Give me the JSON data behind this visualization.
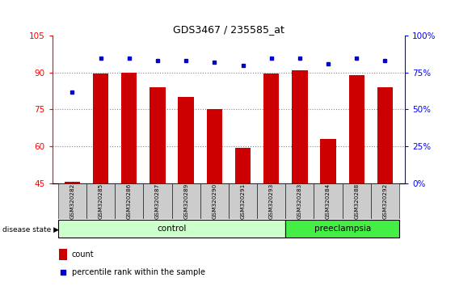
{
  "title": "GDS3467 / 235585_at",
  "samples": [
    "GSM320282",
    "GSM320285",
    "GSM320286",
    "GSM320287",
    "GSM320289",
    "GSM320290",
    "GSM320291",
    "GSM320293",
    "GSM320283",
    "GSM320284",
    "GSM320288",
    "GSM320292"
  ],
  "count_values": [
    45.5,
    89.5,
    90.0,
    84.0,
    80.0,
    75.0,
    59.5,
    89.5,
    91.0,
    63.0,
    89.0,
    84.0
  ],
  "percentile_values": [
    62,
    85,
    85,
    83,
    83,
    82,
    80,
    85,
    85,
    81,
    85,
    83
  ],
  "control_count": 8,
  "left_ylim": [
    45,
    105
  ],
  "left_yticks": [
    45,
    60,
    75,
    90,
    105
  ],
  "right_ylim": [
    0,
    100
  ],
  "right_yticks": [
    0,
    25,
    50,
    75,
    100
  ],
  "right_yticklabels": [
    "0%",
    "25%",
    "50%",
    "75%",
    "100%"
  ],
  "bar_color": "#cc0000",
  "dot_color": "#0000cc",
  "control_color": "#ccffcc",
  "preeclampsia_color": "#44ee44",
  "tick_label_bg": "#cccccc",
  "grid_color": "#888888",
  "count_label": "count",
  "percentile_label": "percentile rank within the sample",
  "disease_state_label": "disease state",
  "control_label": "control",
  "preeclampsia_label": "preeclampsia"
}
